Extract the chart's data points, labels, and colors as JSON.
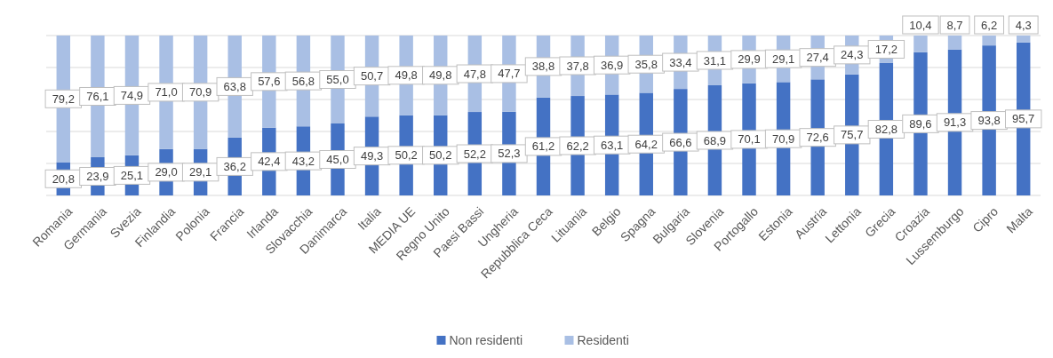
{
  "chart_data": {
    "type": "bar",
    "stacked": true,
    "categories": [
      "Romania",
      "Germania",
      "Svezia",
      "Finlandia",
      "Polonia",
      "Francia",
      "Irlanda",
      "Slovacchia",
      "Danimarca",
      "Italia",
      "MEDIA UE",
      "Regno Unito",
      "Paesi Bassi",
      "Ungheria",
      "Repubblica Ceca",
      "Lituania",
      "Belgio",
      "Spagna",
      "Bulgaria",
      "Slovenia",
      "Portogallo",
      "Estonia",
      "Austria",
      "Lettonia",
      "Grecia",
      "Croazia",
      "Lussemburgo",
      "Cipro",
      "Malta"
    ],
    "series": [
      {
        "name": "Non residenti",
        "color": "#4472c4",
        "values": [
          20.8,
          23.9,
          25.1,
          29.0,
          29.1,
          36.2,
          42.4,
          43.2,
          45.0,
          49.3,
          50.2,
          50.2,
          52.2,
          52.3,
          61.2,
          62.2,
          63.1,
          64.2,
          66.6,
          68.9,
          70.1,
          70.9,
          72.6,
          75.7,
          82.8,
          89.6,
          91.3,
          93.8,
          95.7
        ],
        "value_labels": [
          "20,8",
          "23,9",
          "25,1",
          "29,0",
          "29,1",
          "36,2",
          "42,4",
          "43,2",
          "45,0",
          "49,3",
          "50,2",
          "50,2",
          "52,2",
          "52,3",
          "61,2",
          "62,2",
          "63,1",
          "64,2",
          "66,6",
          "68,9",
          "70,1",
          "70,9",
          "72,6",
          "75,7",
          "82,8",
          "89,6",
          "91,3",
          "93,8",
          "95,7"
        ]
      },
      {
        "name": "Residenti",
        "color": "#a9bfe4",
        "values": [
          79.2,
          76.1,
          74.9,
          71.0,
          70.9,
          63.8,
          57.6,
          56.8,
          55.0,
          50.7,
          49.8,
          49.8,
          47.8,
          47.7,
          38.8,
          37.8,
          36.9,
          35.8,
          33.4,
          31.1,
          29.9,
          29.1,
          27.4,
          24.3,
          17.2,
          10.4,
          8.7,
          6.2,
          4.3
        ],
        "value_labels": [
          "79,2",
          "76,1",
          "74,9",
          "71,0",
          "70,9",
          "63,8",
          "57,6",
          "56,8",
          "55,0",
          "50,7",
          "49,8",
          "49,8",
          "47,8",
          "47,7",
          "38,8",
          "37,8",
          "36,9",
          "35,8",
          "33,4",
          "31,1",
          "29,9",
          "29,1",
          "27,4",
          "24,3",
          "17,2",
          "10,4",
          "8,7",
          "6,2",
          "4,3"
        ]
      }
    ],
    "ylim": [
      0,
      100
    ],
    "yticks": [
      {
        "value": 0,
        "label": null
      },
      {
        "value": 20,
        "label": null
      },
      {
        "value": 40,
        "label": null
      },
      {
        "value": 60,
        "label": null
      },
      {
        "value": 80,
        "label": null
      },
      {
        "value": 100,
        "label": null
      }
    ],
    "grid": "y",
    "tick_labels": "x",
    "legend": "bottom"
  }
}
